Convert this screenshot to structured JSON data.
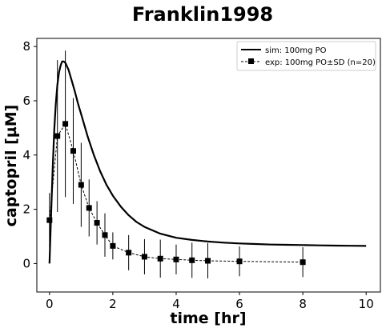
{
  "chart_data": {
    "type": "line",
    "title": "Franklin1998",
    "xlabel": "time [hr]",
    "ylabel": "captopril [µM]",
    "xlim": [
      -0.4,
      10.45
    ],
    "ylim": [
      -1.05,
      8.3
    ],
    "xticks": [
      0,
      2,
      4,
      6,
      8,
      10
    ],
    "yticks": [
      0,
      2,
      4,
      6,
      8
    ],
    "grid": false,
    "legend_position": "top-right",
    "series": [
      {
        "name": "sim: 100mg PO",
        "style": "solid",
        "color": "#000000",
        "x": [
          0,
          0.05,
          0.1,
          0.15,
          0.2,
          0.25,
          0.3,
          0.35,
          0.4,
          0.45,
          0.5,
          0.6,
          0.7,
          0.8,
          0.9,
          1.0,
          1.2,
          1.4,
          1.6,
          1.8,
          2.0,
          2.25,
          2.5,
          2.75,
          3.0,
          3.5,
          4.0,
          4.5,
          5.0,
          5.5,
          6.0,
          6.5,
          7.0,
          7.5,
          8.0,
          8.5,
          9.0,
          9.5,
          10.0
        ],
        "y": [
          0.0,
          1.8,
          3.5,
          4.9,
          5.9,
          6.6,
          7.05,
          7.3,
          7.45,
          7.45,
          7.4,
          7.15,
          6.75,
          6.35,
          5.9,
          5.5,
          4.7,
          4.0,
          3.4,
          2.9,
          2.5,
          2.1,
          1.78,
          1.53,
          1.35,
          1.1,
          0.95,
          0.87,
          0.81,
          0.77,
          0.74,
          0.72,
          0.7,
          0.69,
          0.68,
          0.67,
          0.66,
          0.655,
          0.65
        ]
      },
      {
        "name": "exp: 100mg PO±SD (n=20)",
        "style": "dashed",
        "marker": "square",
        "color": "#000000",
        "x": [
          0,
          0.25,
          0.5,
          0.75,
          1.0,
          1.25,
          1.5,
          1.75,
          2.0,
          2.5,
          3.0,
          3.5,
          4.0,
          4.5,
          5.0,
          6.0,
          8.0
        ],
        "y": [
          1.6,
          4.7,
          5.15,
          4.15,
          2.9,
          2.05,
          1.5,
          1.05,
          0.65,
          0.4,
          0.25,
          0.18,
          0.15,
          0.12,
          0.1,
          0.08,
          0.05
        ],
        "sd": [
          1.0,
          2.8,
          2.7,
          1.95,
          1.55,
          1.05,
          0.8,
          0.8,
          0.5,
          0.65,
          0.65,
          0.7,
          0.55,
          0.65,
          0.65,
          0.55,
          0.55
        ]
      }
    ]
  }
}
